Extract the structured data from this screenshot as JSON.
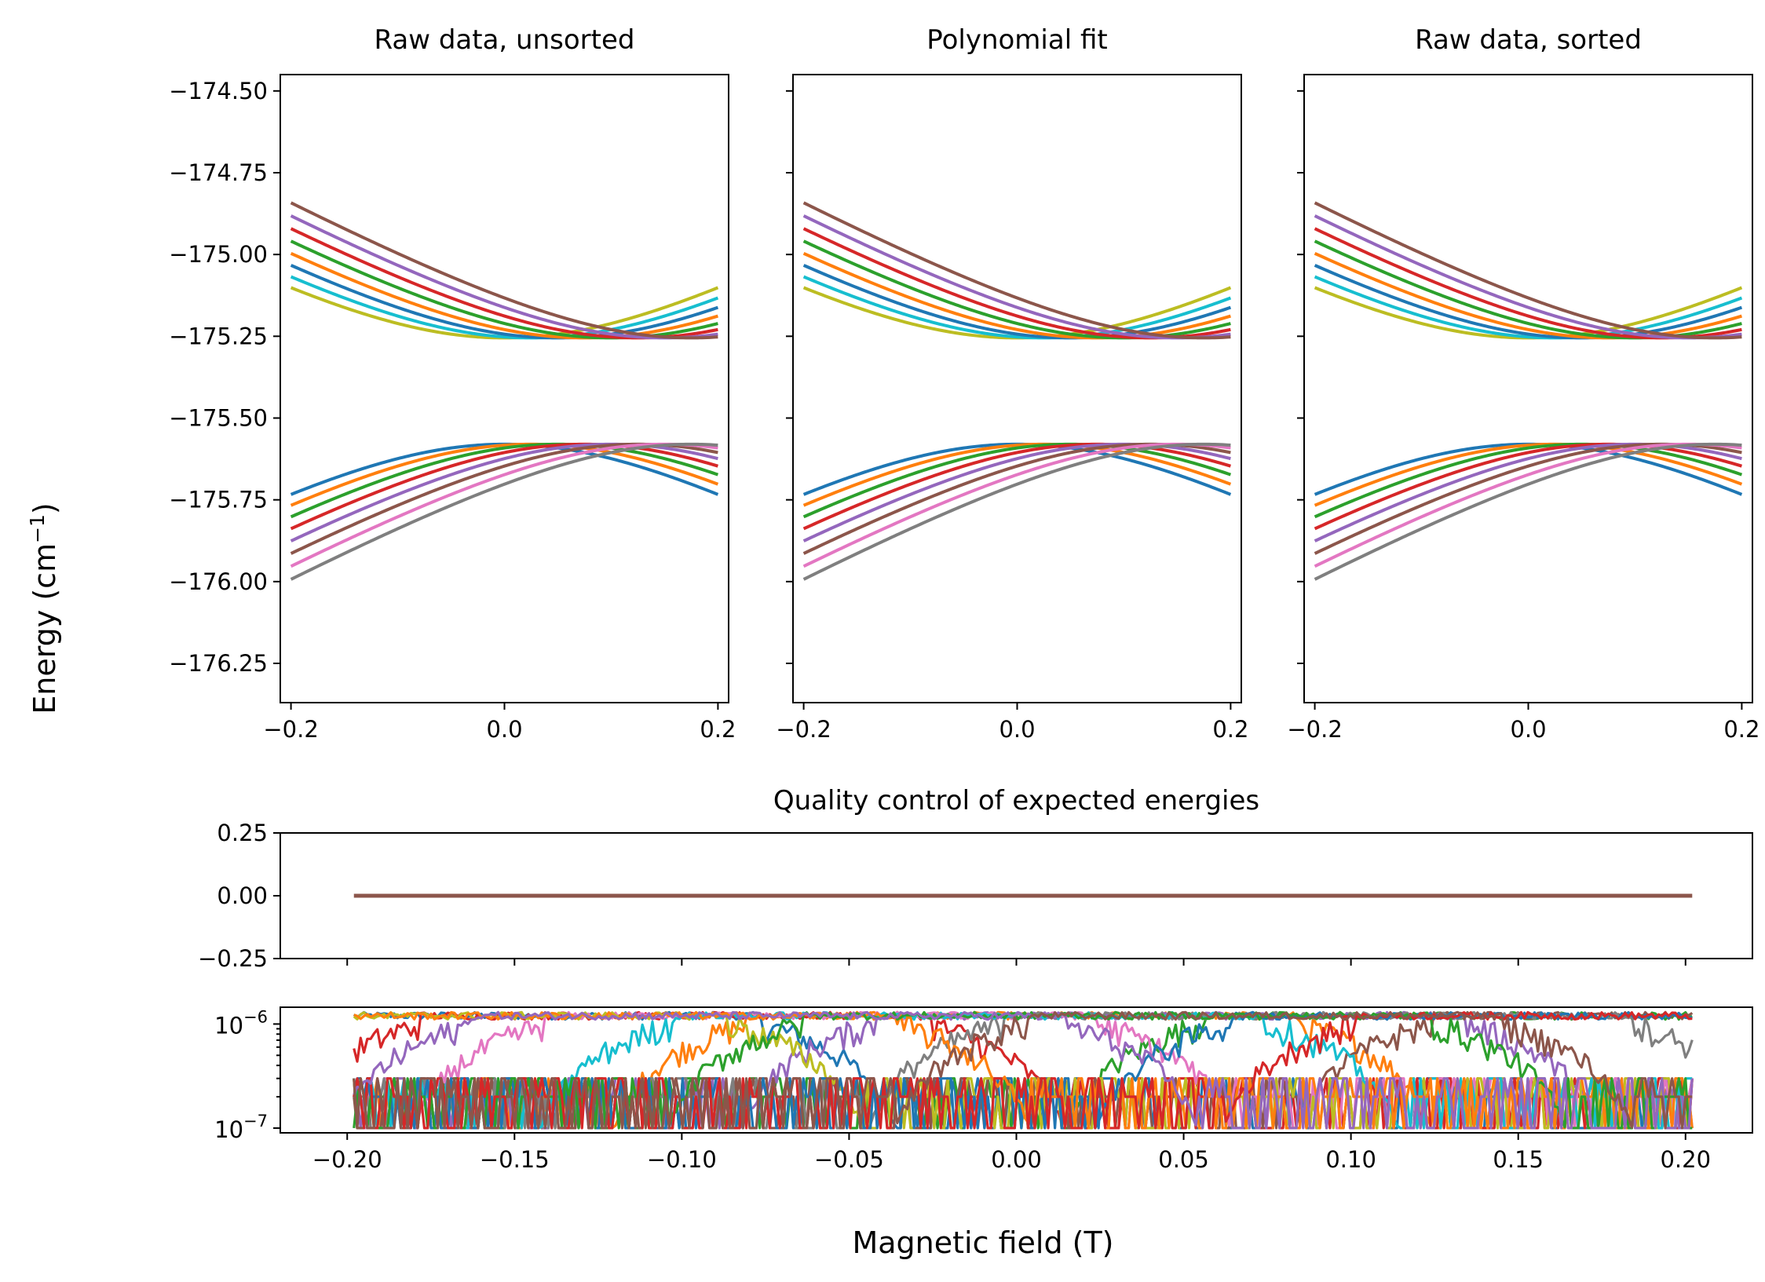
{
  "figure": {
    "ylabel_main": "Energy (cm",
    "ylabel_sup": "−1",
    "ylabel_close": ")",
    "xlabel": "Magnetic field (T)"
  },
  "colors": [
    "#1f77b4",
    "#ff7f0e",
    "#2ca02c",
    "#d62728",
    "#9467bd",
    "#8c564b",
    "#e377c2",
    "#7f7f7f",
    "#bcbd22",
    "#17becf"
  ],
  "chart_data": [
    {
      "type": "line",
      "title": "Raw data, unsorted",
      "xlim": [
        -0.21,
        0.21
      ],
      "ylim": [
        -176.37,
        -174.45
      ],
      "xticks": [
        -0.2,
        0.0,
        0.2
      ],
      "xtick_labels": [
        "−0.2",
        "0.0",
        "0.2"
      ],
      "yticks": [
        -174.5,
        -174.75,
        -175.0,
        -175.25,
        -175.5,
        -175.75,
        -176.0,
        -176.25
      ],
      "ytick_labels": [
        "−174.50",
        "−174.75",
        "−175.00",
        "−175.25",
        "−175.50",
        "−175.75",
        "−176.00",
        "−176.25"
      ],
      "model": {
        "x_range": [
          -0.2,
          0.2
        ],
        "lower_center": -175.925,
        "upper_center": -174.915,
        "half_gap": 0.345,
        "slope": 1.8,
        "level_offsets": [
          0.0,
          0.025,
          0.05,
          0.075,
          0.1,
          0.125,
          0.15,
          0.175
        ]
      },
      "series": [
        {
          "group": "lower",
          "offset": 0.0,
          "color": "#1f77b4"
        },
        {
          "group": "lower",
          "offset": 0.025,
          "color": "#ff7f0e"
        },
        {
          "group": "lower",
          "offset": 0.05,
          "color": "#2ca02c"
        },
        {
          "group": "lower",
          "offset": 0.075,
          "color": "#d62728"
        },
        {
          "group": "lower",
          "offset": 0.1,
          "color": "#9467bd"
        },
        {
          "group": "lower",
          "offset": 0.125,
          "color": "#8c564b"
        },
        {
          "group": "lower",
          "offset": 0.15,
          "color": "#e377c2"
        },
        {
          "group": "lower",
          "offset": 0.175,
          "color": "#7f7f7f"
        },
        {
          "group": "upper",
          "offset": 0.0,
          "color": "#bcbd22"
        },
        {
          "group": "upper",
          "offset": 0.025,
          "color": "#17becf"
        },
        {
          "group": "upper",
          "offset": 0.05,
          "color": "#1f77b4"
        },
        {
          "group": "upper",
          "offset": 0.075,
          "color": "#ff7f0e"
        },
        {
          "group": "upper",
          "offset": 0.1,
          "color": "#2ca02c"
        },
        {
          "group": "upper",
          "offset": 0.125,
          "color": "#d62728"
        },
        {
          "group": "upper",
          "offset": 0.15,
          "color": "#9467bd"
        },
        {
          "group": "upper",
          "offset": 0.175,
          "color": "#8c564b"
        }
      ]
    },
    {
      "type": "line",
      "title": "Polynomial fit",
      "xlim": [
        -0.21,
        0.21
      ],
      "ylim": [
        -176.37,
        -174.45
      ],
      "xticks": [
        -0.2,
        0.0,
        0.2
      ],
      "xtick_labels": [
        "−0.2",
        "0.0",
        "0.2"
      ],
      "yticks": [
        -174.5,
        -174.75,
        -175.0,
        -175.25,
        -175.5,
        -175.75,
        -176.0,
        -176.25
      ],
      "ytick_labels": [],
      "model": {
        "x_range": [
          -0.2,
          0.2
        ],
        "lower_center": -175.925,
        "upper_center": -174.915,
        "half_gap": 0.345,
        "slope": 1.8,
        "level_offsets": [
          0.0,
          0.025,
          0.05,
          0.075,
          0.1,
          0.125,
          0.15,
          0.175
        ]
      },
      "series": [
        {
          "group": "lower",
          "offset": 0.0,
          "color": "#1f77b4"
        },
        {
          "group": "lower",
          "offset": 0.025,
          "color": "#ff7f0e"
        },
        {
          "group": "lower",
          "offset": 0.05,
          "color": "#2ca02c"
        },
        {
          "group": "lower",
          "offset": 0.075,
          "color": "#d62728"
        },
        {
          "group": "lower",
          "offset": 0.1,
          "color": "#9467bd"
        },
        {
          "group": "lower",
          "offset": 0.125,
          "color": "#8c564b"
        },
        {
          "group": "lower",
          "offset": 0.15,
          "color": "#e377c2"
        },
        {
          "group": "lower",
          "offset": 0.175,
          "color": "#7f7f7f"
        },
        {
          "group": "upper",
          "offset": 0.0,
          "color": "#bcbd22"
        },
        {
          "group": "upper",
          "offset": 0.025,
          "color": "#17becf"
        },
        {
          "group": "upper",
          "offset": 0.05,
          "color": "#1f77b4"
        },
        {
          "group": "upper",
          "offset": 0.075,
          "color": "#ff7f0e"
        },
        {
          "group": "upper",
          "offset": 0.1,
          "color": "#2ca02c"
        },
        {
          "group": "upper",
          "offset": 0.125,
          "color": "#d62728"
        },
        {
          "group": "upper",
          "offset": 0.15,
          "color": "#9467bd"
        },
        {
          "group": "upper",
          "offset": 0.175,
          "color": "#8c564b"
        }
      ]
    },
    {
      "type": "line",
      "title": "Raw data, sorted",
      "xlim": [
        -0.21,
        0.21
      ],
      "ylim": [
        -176.37,
        -174.45
      ],
      "xticks": [
        -0.2,
        0.0,
        0.2
      ],
      "xtick_labels": [
        "−0.2",
        "0.0",
        "0.2"
      ],
      "yticks": [
        -174.5,
        -174.75,
        -175.0,
        -175.25,
        -175.5,
        -175.75,
        -176.0,
        -176.25
      ],
      "ytick_labels": [],
      "model": {
        "x_range": [
          -0.2,
          0.2
        ],
        "lower_center": -175.925,
        "upper_center": -174.915,
        "half_gap": 0.345,
        "slope": 1.8,
        "level_offsets": [
          0.0,
          0.025,
          0.05,
          0.075,
          0.1,
          0.125,
          0.15,
          0.175
        ]
      },
      "series": [
        {
          "group": "lower",
          "offset": 0.0,
          "color": "#1f77b4"
        },
        {
          "group": "lower",
          "offset": 0.025,
          "color": "#ff7f0e"
        },
        {
          "group": "lower",
          "offset": 0.05,
          "color": "#2ca02c"
        },
        {
          "group": "lower",
          "offset": 0.075,
          "color": "#d62728"
        },
        {
          "group": "lower",
          "offset": 0.1,
          "color": "#9467bd"
        },
        {
          "group": "lower",
          "offset": 0.125,
          "color": "#8c564b"
        },
        {
          "group": "lower",
          "offset": 0.15,
          "color": "#e377c2"
        },
        {
          "group": "lower",
          "offset": 0.175,
          "color": "#7f7f7f"
        },
        {
          "group": "upper",
          "offset": 0.0,
          "color": "#bcbd22"
        },
        {
          "group": "upper",
          "offset": 0.025,
          "color": "#17becf"
        },
        {
          "group": "upper",
          "offset": 0.05,
          "color": "#1f77b4"
        },
        {
          "group": "upper",
          "offset": 0.075,
          "color": "#ff7f0e"
        },
        {
          "group": "upper",
          "offset": 0.1,
          "color": "#2ca02c"
        },
        {
          "group": "upper",
          "offset": 0.125,
          "color": "#d62728"
        },
        {
          "group": "upper",
          "offset": 0.15,
          "color": "#9467bd"
        },
        {
          "group": "upper",
          "offset": 0.175,
          "color": "#8c564b"
        }
      ]
    },
    {
      "type": "line",
      "title": "Quality control of expected energies",
      "xlim": [
        -0.22,
        0.22
      ],
      "ylim": [
        -0.25,
        0.25
      ],
      "yticks": [
        0.25,
        0.0,
        -0.25
      ],
      "ytick_labels": [
        "0.25",
        "0.00",
        "−0.25"
      ],
      "xticks": [
        -0.2,
        -0.15,
        -0.1,
        -0.05,
        0.0,
        0.05,
        0.1,
        0.15,
        0.2
      ],
      "series": [
        {
          "x": [
            -0.198,
            0.202
          ],
          "values": [
            0.0,
            0.0
          ],
          "color": "#8c564b"
        }
      ]
    },
    {
      "type": "line",
      "yscale": "log",
      "xlim": [
        -0.22,
        0.22
      ],
      "ylim": [
        9e-08,
        1.45e-06
      ],
      "x_range": [
        -0.198,
        0.202
      ],
      "xticks": [
        -0.2,
        -0.15,
        -0.1,
        -0.05,
        0.0,
        0.05,
        0.1,
        0.15,
        0.2
      ],
      "xtick_labels": [
        "−0.20",
        "−0.15",
        "−0.10",
        "−0.05",
        "0.00",
        "0.05",
        "0.10",
        "0.15",
        "0.20"
      ],
      "yticks": [
        1e-06,
        1e-07
      ],
      "ytick_labels": [
        {
          "base": "10",
          "exp": "−6"
        },
        {
          "base": "10",
          "exp": "−7"
        }
      ],
      "series_count": 16,
      "value_range": [
        1e-07,
        1.3e-06
      ]
    }
  ]
}
